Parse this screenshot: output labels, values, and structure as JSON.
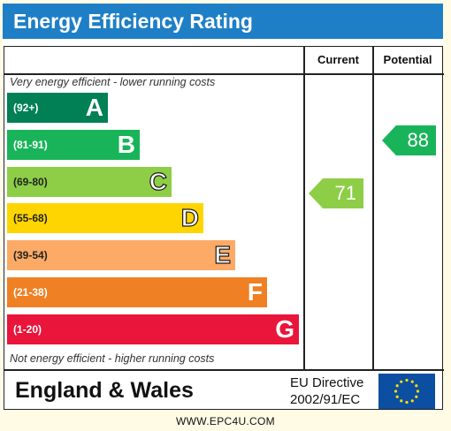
{
  "title": "Energy Efficiency Rating",
  "columns": {
    "current": "Current",
    "potential": "Potential"
  },
  "top_note": "Very energy efficient - lower running costs",
  "bottom_note": "Not energy efficient - higher running costs",
  "bands": [
    {
      "range": "(92+)",
      "letter": "A",
      "color": "#008054"
    },
    {
      "range": "(81-91)",
      "letter": "B",
      "color": "#19b459"
    },
    {
      "range": "(69-80)",
      "letter": "C",
      "color": "#8dce46"
    },
    {
      "range": "(55-68)",
      "letter": "D",
      "color": "#ffd500"
    },
    {
      "range": "(39-54)",
      "letter": "E",
      "color": "#fcaa65"
    },
    {
      "range": "(21-38)",
      "letter": "F",
      "color": "#ef8023"
    },
    {
      "range": "(1-20)",
      "letter": "G",
      "color": "#e9153b"
    }
  ],
  "current": {
    "value": "71",
    "color": "#8dce46"
  },
  "potential": {
    "value": "88",
    "color": "#19b459"
  },
  "footer": {
    "region": "England & Wales",
    "directive_line1": "EU Directive",
    "directive_line2": "2002/91/EC"
  },
  "website": "WWW.EPC4U.COM"
}
